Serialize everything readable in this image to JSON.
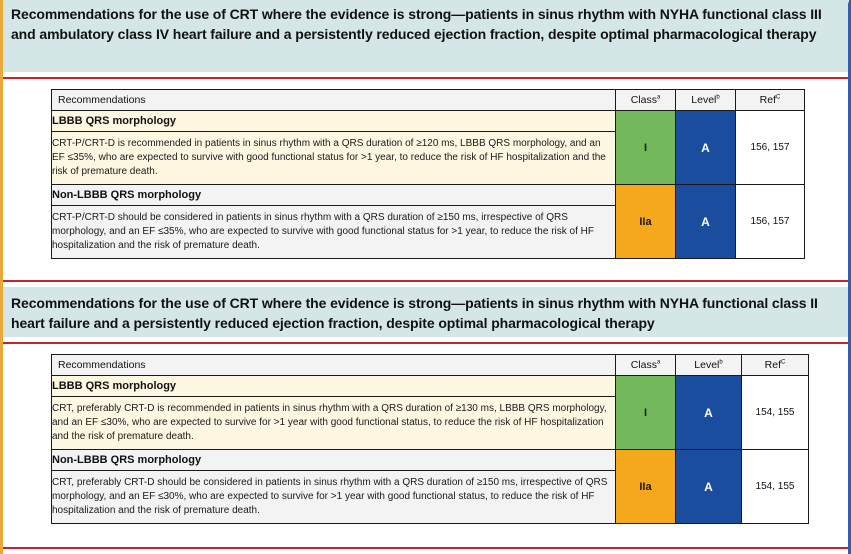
{
  "sections": [
    {
      "heading": "Recommendations for the use of CRT where the evidence is strong—patients in sinus rhythm with NYHA functional class III and ambulatory class IV heart failure and a persistently reduced ejection fraction, despite optimal pharmacological therapy",
      "columns": {
        "recommendations": "Recommendations",
        "class": "Class",
        "class_sup": "a",
        "level": "Level",
        "level_sup": "b",
        "ref": "Ref",
        "ref_sup": "C"
      },
      "rows": [
        {
          "group": "LBBB QRS morphology",
          "text": "CRT-P/CRT-D is recommended in patients in sinus rhythm with a QRS duration of ≥120 ms, LBBB QRS morphology, and an EF ≤35%, who are expected to survive with good functional status for >1 year, to reduce the risk of HF hospitalization and the risk of premature death.",
          "class": "I",
          "level": "A",
          "ref": "156, 157"
        },
        {
          "group": "Non-LBBB QRS morphology",
          "text": "CRT-P/CRT-D should be considered in patients in sinus rhythm with a QRS duration of ≥150 ms, irrespective of QRS morphology, and an EF ≤35%, who are expected to survive with good functional status for >1 year, to reduce the risk of HF hospitalization and the risk of premature death.",
          "class": "IIa",
          "level": "A",
          "ref": "156, 157"
        }
      ]
    },
    {
      "heading": "Recommendations for the use of CRT where the evidence is strong—patients in sinus rhythm with NYHA functional class II heart failure and a persistently reduced ejection fraction, despite optimal pharmacological therapy",
      "columns": {
        "recommendations": "Recommendations",
        "class": "Class",
        "class_sup": "a",
        "level": "Level",
        "level_sup": "b",
        "ref": "Ref",
        "ref_sup": "C"
      },
      "rows": [
        {
          "group": "LBBB QRS morphology",
          "text": "CRT, preferably CRT-D is recommended in patients in sinus rhythm with a QRS duration of ≥130 ms, LBBB QRS morphology, and an EF ≤30%, who are expected to survive for >1 year with good functional status, to reduce the risk of HF hospitalization and the risk of premature death.",
          "class": "I",
          "level": "A",
          "ref": "154, 155"
        },
        {
          "group": "Non-LBBB QRS morphology",
          "text": "CRT, preferably CRT-D should be considered in patients in sinus rhythm with a QRS duration of ≥150 ms, irrespective of QRS morphology, and an EF ≤30%, who are expected to survive for >1 year with good functional status, to reduce the risk of HF hospitalization and the risk of premature death.",
          "class": "IIa",
          "level": "A",
          "ref": "154, 155"
        }
      ]
    }
  ],
  "colors": {
    "heading_bg": "#d4e7e6",
    "rule": "#c4242e",
    "class_I": "#73b85a",
    "class_IIa": "#f6a81c",
    "level_A": "#1a4d9e"
  }
}
